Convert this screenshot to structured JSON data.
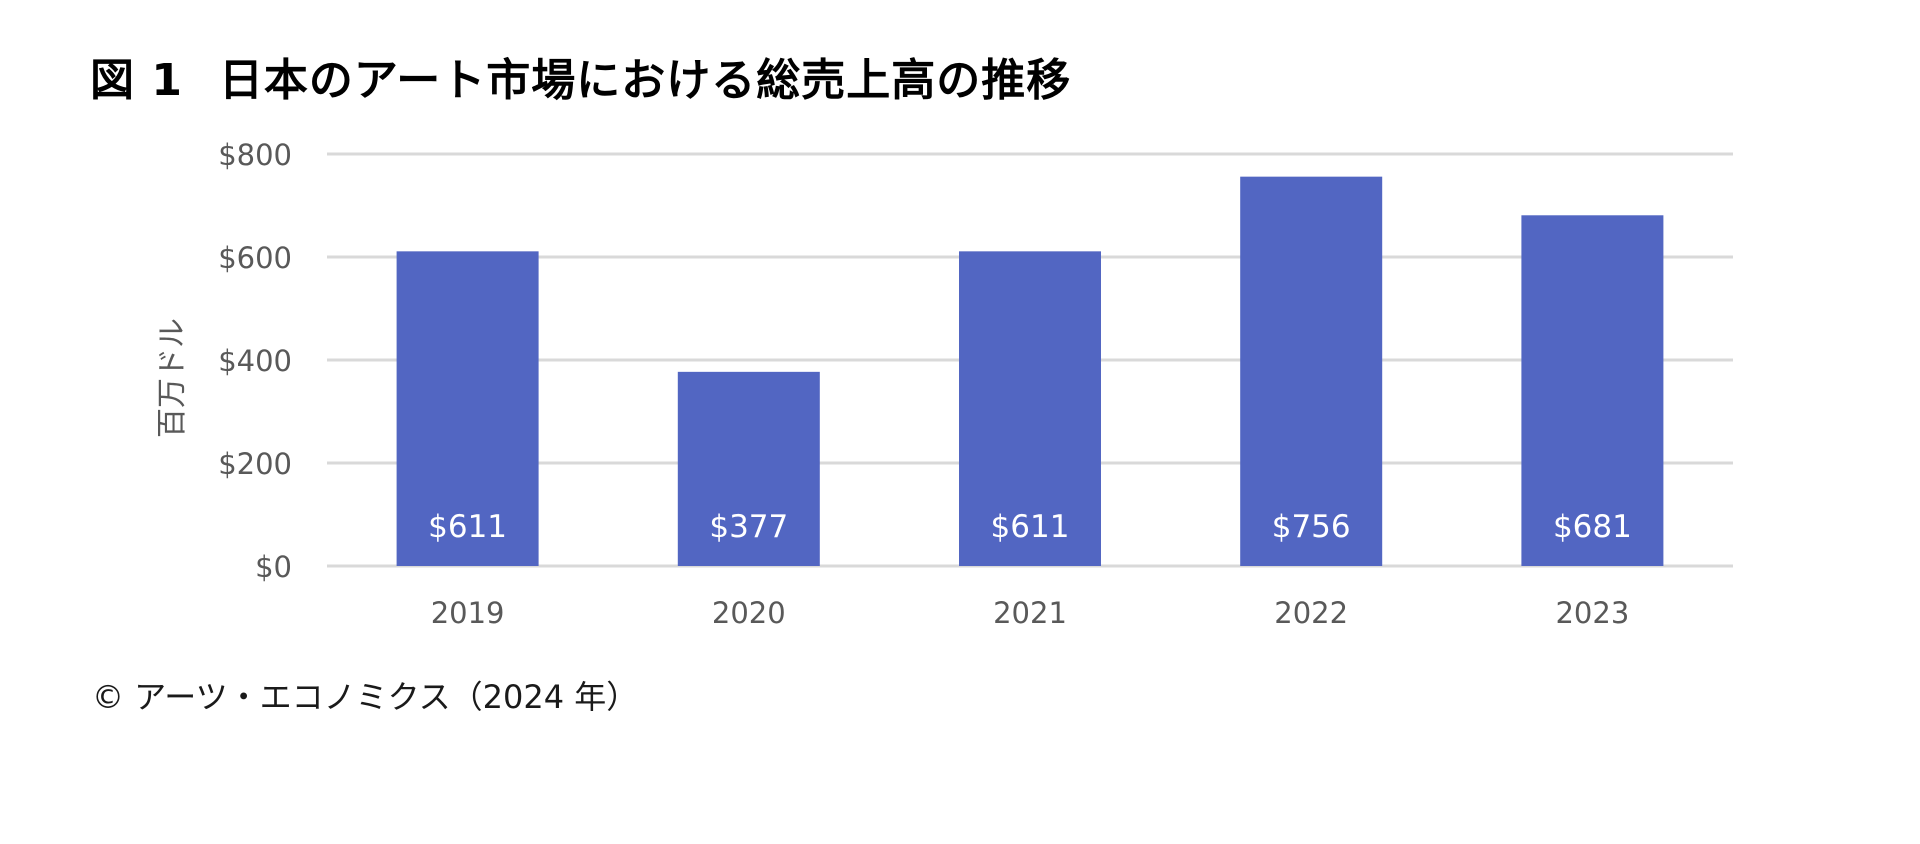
{
  "figure": {
    "title_label": "図 1",
    "title_text": "日本のアート市場における総売上高の推移"
  },
  "chart_data": {
    "type": "bar",
    "categories": [
      "2019",
      "2020",
      "2021",
      "2022",
      "2023"
    ],
    "values": [
      611,
      377,
      611,
      756,
      681
    ],
    "value_labels": [
      "$611",
      "$377",
      "$611",
      "$756",
      "$681"
    ],
    "title": "",
    "xlabel": "",
    "ylabel": "百万ドル",
    "ylim": [
      0,
      800
    ],
    "yticks": [
      0,
      200,
      400,
      600,
      800
    ],
    "ytick_labels": [
      "$0",
      "$200",
      "$400",
      "$600",
      "$800"
    ],
    "grid": true,
    "legend": "none",
    "colors": {
      "bar": "#5266C2",
      "grid": "#D9D9D9",
      "axis_text": "#595959",
      "bar_label": "#FFFFFF"
    }
  },
  "source": "© アーツ・エコノミクス（2024 年）"
}
